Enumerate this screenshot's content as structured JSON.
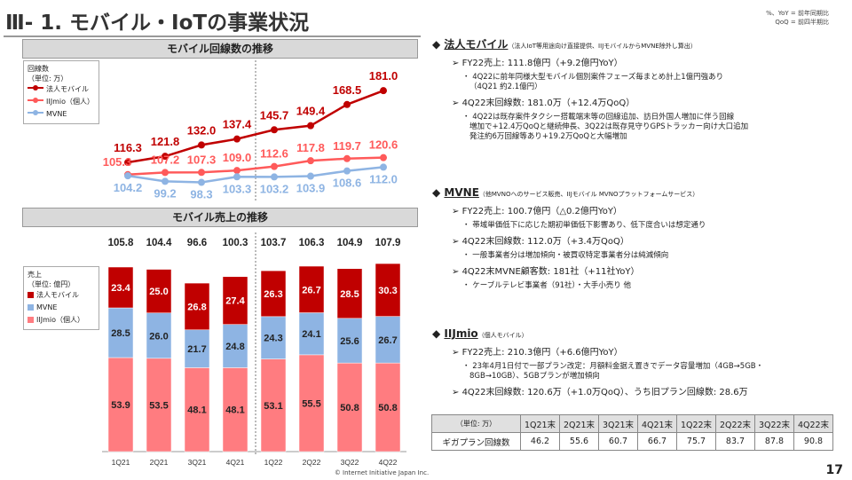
{
  "header": {
    "title": "Ⅲ- 1.  モバイル・IoTの事業状況",
    "note_line1": "%、YoY = 前年同期比",
    "note_line2": "QoQ = 前四半期比"
  },
  "colors": {
    "hojin": "#c00000",
    "iijmio": "#ff5a5a",
    "iijmio_bar": "#ff7c80",
    "mvne": "#8eb4e3",
    "panel": "#d9d9d9"
  },
  "chart_data": [
    {
      "type": "line",
      "title": "モバイル回線数の推移",
      "legend_title": "回線数",
      "legend_unit": "（単位: 万）",
      "categories": [
        "1Q21",
        "2Q21",
        "3Q21",
        "4Q21",
        "1Q22",
        "2Q22",
        "3Q22",
        "4Q22"
      ],
      "series": [
        {
          "name": "法人モバイル",
          "values": [
            116.3,
            121.8,
            132.0,
            137.4,
            145.7,
            149.4,
            168.5,
            181.0
          ],
          "labels": [
            "116.3",
            "121.8",
            "132.0",
            "137.4",
            "145.7",
            "149.4",
            "168.5",
            "181.0"
          ]
        },
        {
          "name": "IIJmio（個人）",
          "values": [
            105.3,
            107.2,
            107.3,
            109.0,
            112.6,
            117.8,
            119.7,
            120.6
          ],
          "labels": [
            "105.3",
            "107.2",
            "107.3",
            "109.0",
            "112.6",
            "117.8",
            "119.7",
            "120.6"
          ]
        },
        {
          "name": "MVNE",
          "values": [
            104.2,
            99.2,
            98.3,
            103.3,
            103.2,
            103.9,
            108.6,
            112.0
          ],
          "labels": [
            "104.2",
            "99.2",
            "98.3",
            "103.3",
            "103.2",
            "103.9",
            "108.6",
            "112.0"
          ]
        }
      ]
    },
    {
      "type": "bar",
      "stacked": true,
      "title": "モバイル売上の推移",
      "legend_title": "売上",
      "legend_unit": "（単位: 億円）",
      "categories": [
        "1Q21",
        "2Q21",
        "3Q21",
        "4Q21",
        "1Q22",
        "2Q22",
        "3Q22",
        "4Q22"
      ],
      "totals": [
        "105.8",
        "104.4",
        "96.6",
        "100.3",
        "103.7",
        "106.3",
        "104.9",
        "107.9"
      ],
      "series": [
        {
          "name": "IIJmio（個人）",
          "values": [
            53.9,
            53.5,
            48.1,
            48.1,
            53.1,
            55.5,
            50.8,
            50.8
          ],
          "labels": [
            "53.9",
            "53.5",
            "48.1",
            "48.1",
            "53.1",
            "55.5",
            "50.8",
            "50.8"
          ]
        },
        {
          "name": "MVNE",
          "values": [
            28.5,
            26.0,
            21.7,
            24.8,
            24.3,
            24.1,
            25.6,
            26.7
          ],
          "labels": [
            "28.5",
            "26.0",
            "21.7",
            "24.8",
            "24.3",
            "24.1",
            "25.6",
            "26.7"
          ]
        },
        {
          "name": "法人モバイル",
          "values": [
            23.4,
            25.0,
            26.8,
            27.4,
            26.3,
            26.7,
            28.5,
            30.3
          ],
          "labels": [
            "23.4",
            "25.0",
            "26.8",
            "27.4",
            "26.3",
            "26.7",
            "28.5",
            "30.3"
          ]
        }
      ]
    }
  ],
  "sections": [
    {
      "title": "法人モバイル",
      "sub": "（法人IoT等用途向け直接提供、IIJモバイルからMVNE除外し算出）",
      "items": [
        {
          "text": "FY22売上: 111.8億円（+9.2億円YoY）",
          "subs": [
            "4Q22に前年同様大型モバイル個別案件フェーズ毎まとめ計上1億円強あり\n（4Q21 約2.1億円）"
          ]
        },
        {
          "text": "4Q22末回線数: 181.0万（+12.4万QoQ）",
          "subs": [
            "4Q22は既存案件タクシー搭載端末等の回線追加、訪日外国人増加に伴う回線\n増加で+12.4万QoQと継続伸長、3Q22は既存見守りGPSトラッカー向け大口追加\n発注約6万回線等あり+19.2万QoQと大幅増加"
          ]
        }
      ]
    },
    {
      "title": "MVNE",
      "sub": "（他MVNOへのサービス販売、IIJモバイル MVNOプラットフォームサービス）",
      "items": [
        {
          "text": "FY22売上: 100.7億円（△0.2億円YoY）",
          "subs": [
            "帯域単価低下に応じた期初単価低下影響あり、低下度合いは想定通り"
          ]
        },
        {
          "text": "4Q22末回線数: 112.0万（+3.4万QoQ）",
          "subs": [
            "一般事業者分は増加傾向・被買収特定事業者分は純減傾向"
          ]
        },
        {
          "text": "4Q22末MVNE顧客数: 181社（+11社YoY）",
          "subs": [
            "ケーブルテレビ事業者（91社）・大手小売り 他"
          ]
        }
      ]
    },
    {
      "title": "IIJmio",
      "sub": "（個人モバイル）",
      "items": [
        {
          "text": "FY22売上: 210.3億円（+6.6億円YoY）",
          "subs": [
            "23年4月1日付で一部プラン改定：月額料金据え置きでデータ容量増加（4GB→5GB・\n8GB→10GB）、5GBプランが増加傾向"
          ]
        },
        {
          "text": "4Q22末回線数: 120.6万（+1.0万QoQ）、うち旧プラン回線数: 28.6万",
          "subs": []
        }
      ]
    }
  ],
  "giga_table": {
    "unit": "（単位: 万）",
    "headers": [
      "1Q21末",
      "2Q21末",
      "3Q21末",
      "4Q21末",
      "1Q22末",
      "2Q22末",
      "3Q22末",
      "4Q22末"
    ],
    "row_label": "ギガプラン回線数",
    "values": [
      "46.2",
      "55.6",
      "60.7",
      "66.7",
      "75.7",
      "83.7",
      "87.8",
      "90.8"
    ]
  },
  "footer": {
    "copyright": "© Internet Initiative Japan Inc.",
    "page": "17"
  }
}
